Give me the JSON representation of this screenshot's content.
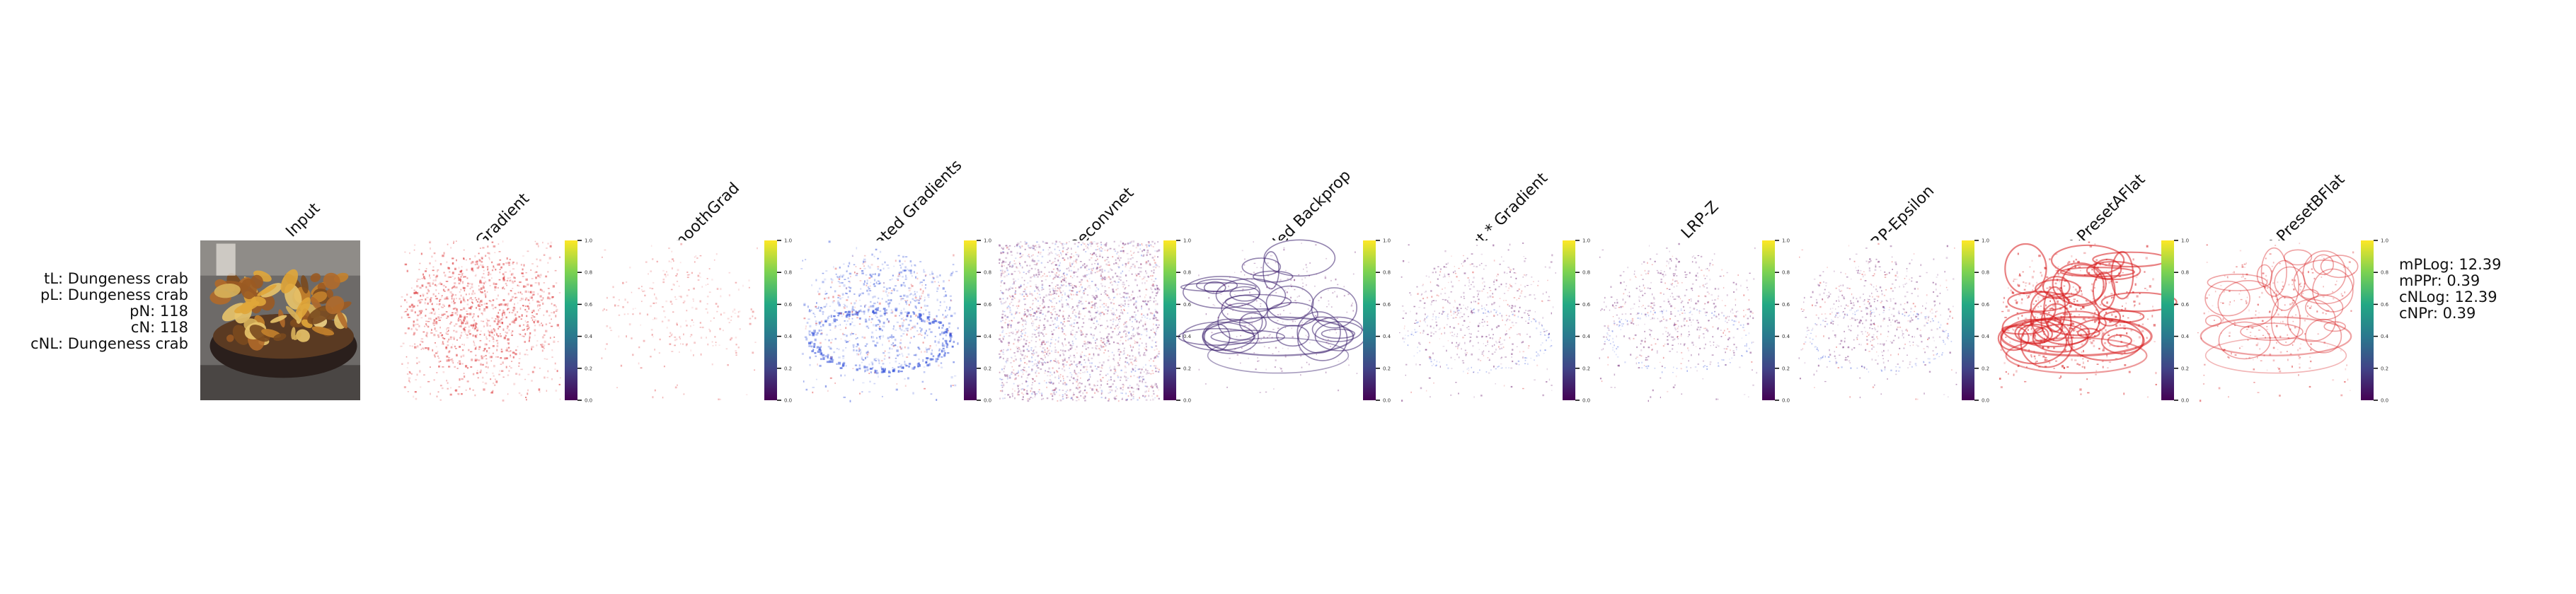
{
  "chart_data": {
    "type": "heatmap",
    "panels": [
      {
        "title": "Input",
        "kind": "photo"
      },
      {
        "title": "Gradient",
        "kind": "heatmap",
        "pattern": "diffuse-red",
        "colorbar": true
      },
      {
        "title": "SmoothGrad",
        "kind": "heatmap",
        "pattern": "faint-red",
        "colorbar": true
      },
      {
        "title": "Integrated Gradients",
        "kind": "heatmap",
        "pattern": "blue-red-edges",
        "colorbar": true
      },
      {
        "title": "Deconvnet",
        "kind": "heatmap",
        "pattern": "dense-purple",
        "colorbar": true
      },
      {
        "title": "Guided Backprop",
        "kind": "heatmap",
        "pattern": "purple-outline",
        "colorbar": true
      },
      {
        "title": "Input * Gradient",
        "kind": "heatmap",
        "pattern": "sparse-purple",
        "colorbar": true
      },
      {
        "title": "LRP-Z",
        "kind": "heatmap",
        "pattern": "sparse-purple",
        "colorbar": true
      },
      {
        "title": "LRP-Epsilon",
        "kind": "heatmap",
        "pattern": "sparse-purple",
        "colorbar": true
      },
      {
        "title": "LRP-PresetAFlat",
        "kind": "heatmap",
        "pattern": "red-outline",
        "colorbar": true
      },
      {
        "title": "LRP-PresetBFlat",
        "kind": "heatmap",
        "pattern": "red-outline-sparse",
        "colorbar": true
      }
    ],
    "colorbar": {
      "colormap": "viridis",
      "range": [
        0.0,
        1.0
      ],
      "ticks": [
        "0.0",
        "0.2",
        "0.4",
        "0.6",
        "0.8",
        "1.0"
      ]
    },
    "colors": {
      "positive": "#d7191c",
      "negative": "#2c4bd8",
      "mixed": "#6a1b6e"
    },
    "left_labels": [
      "tL: Dungeness crab",
      "pL: Dungeness crab",
      "pN: 118",
      "cN: 118",
      "cNL: Dungeness crab"
    ],
    "right_labels": [
      "mPLog: 12.39",
      "mPPr: 0.39",
      "cNLog: 12.39",
      "cNPr: 0.39"
    ]
  }
}
